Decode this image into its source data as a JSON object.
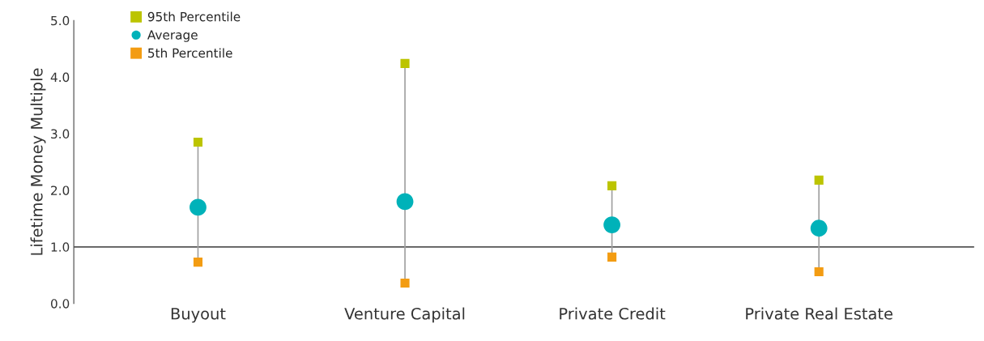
{
  "chart_data": {
    "type": "scatter",
    "ylabel": "Lifetime Money Multiple",
    "categories": [
      "Buyout",
      "Venture Capital",
      "Private Credit",
      "Private Real Estate"
    ],
    "series": [
      {
        "name": "95th Percentile",
        "color": "#bcc400",
        "marker": "square",
        "values": [
          2.85,
          4.24,
          2.08,
          2.18
        ]
      },
      {
        "name": "Average",
        "color": "#00b2b9",
        "marker": "circle",
        "values": [
          1.7,
          1.8,
          1.39,
          1.33
        ]
      },
      {
        "name": "5th Percentile",
        "color": "#f39c12",
        "marker": "square",
        "values": [
          0.73,
          0.36,
          0.82,
          0.56
        ]
      }
    ],
    "ylim": [
      0,
      5
    ],
    "yticks": [
      {
        "value": 0,
        "label": "0.0"
      },
      {
        "value": 1,
        "label": "1.0"
      },
      {
        "value": 2,
        "label": "2.0"
      },
      {
        "value": 3,
        "label": "3.0"
      },
      {
        "value": 4,
        "label": "4.0"
      },
      {
        "value": 5,
        "label": "5.0"
      }
    ],
    "ref_lines": [
      {
        "axis": "y",
        "value": 1,
        "color": "#555555"
      }
    ],
    "grid": false,
    "legend": "top left"
  }
}
